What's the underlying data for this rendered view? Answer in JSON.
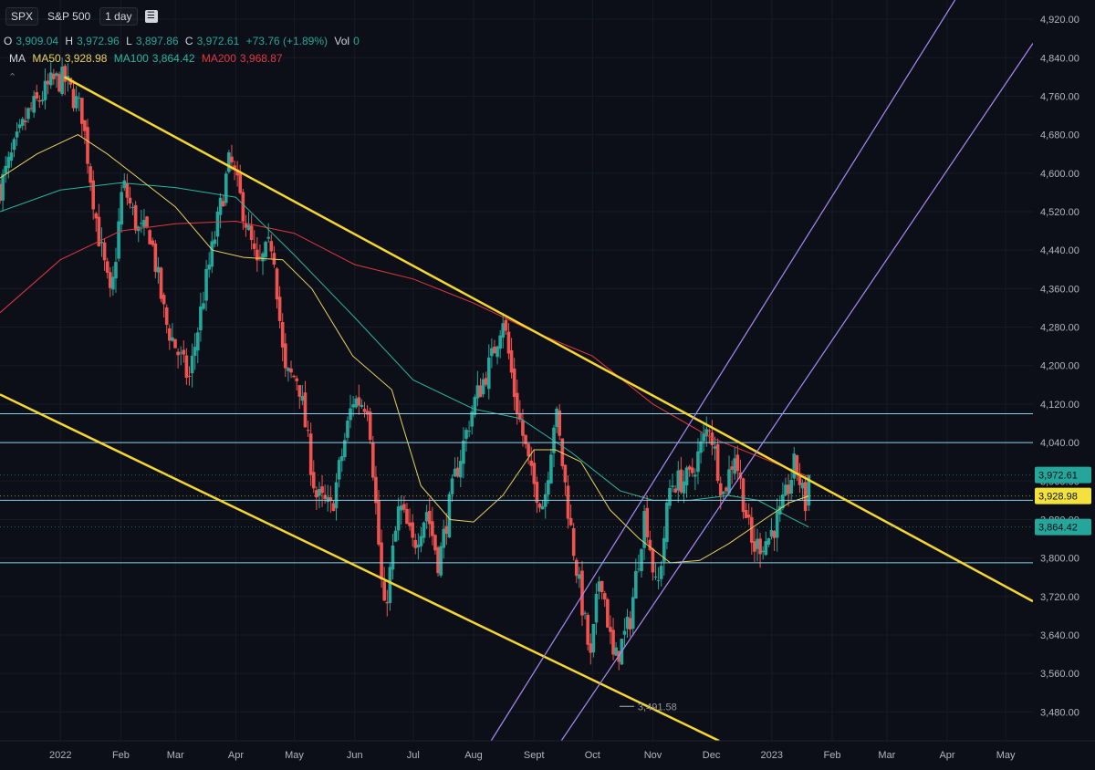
{
  "header": {
    "symbol": "SPX",
    "name": "S&P 500",
    "interval": "1 day",
    "format_icon": "menu-icon"
  },
  "ohlc": {
    "o_label": "O",
    "o": "3,909.04",
    "h_label": "H",
    "h": "3,972.96",
    "l_label": "L",
    "l": "3,897.86",
    "c_label": "C",
    "c": "3,972.61",
    "change": "+73.76 (+1.89%)",
    "vol_label": "Vol",
    "vol": "0"
  },
  "ma_legend": {
    "label": "MA",
    "ma50_label": "MA50",
    "ma50": "3,928.98",
    "ma100_label": "MA100",
    "ma100": "3,864.42",
    "ma200_label": "MA200",
    "ma200": "3,968.87"
  },
  "colors": {
    "up": "#26a69a",
    "down": "#ef5350",
    "ma50": "#e8d35c",
    "ma100": "#29b6a0",
    "ma200": "#e0383f",
    "channel": "#f5d730",
    "pitchfork": "#a78bf5",
    "hline": "#8ecfe8",
    "bg": "#0d0f18"
  },
  "chart_data": {
    "type": "candlestick",
    "title": "SPX S&P 500 1 day",
    "ylim": [
      3420,
      4960
    ],
    "y_ticks": [
      3480,
      3560,
      3640,
      3720,
      3800,
      3880,
      3960,
      4040,
      4120,
      4200,
      4280,
      4360,
      4440,
      4520,
      4600,
      4680,
      4760,
      4840,
      4920
    ],
    "y_tick_labels": [
      "3,480.00",
      "3,560.00",
      "3,640.00",
      "3,720.00",
      "3,800.00",
      "3,880.00",
      "3,960.00",
      "4,040.00",
      "4,120.00",
      "4,200.00",
      "4,280.00",
      "4,360.00",
      "4,440.00",
      "4,520.00",
      "4,600.00",
      "4,680.00",
      "4,760.00",
      "4,840.00",
      "4,920.00"
    ],
    "x_ticks": [
      {
        "label": "2022",
        "date": "2022-01-01"
      },
      {
        "label": "Feb",
        "date": "2022-02-01"
      },
      {
        "label": "Mar",
        "date": "2022-03-01"
      },
      {
        "label": "Apr",
        "date": "2022-04-01"
      },
      {
        "label": "May",
        "date": "2022-05-01"
      },
      {
        "label": "Jun",
        "date": "2022-06-01"
      },
      {
        "label": "Jul",
        "date": "2022-07-01"
      },
      {
        "label": "Aug",
        "date": "2022-08-01"
      },
      {
        "label": "Sept",
        "date": "2022-09-01"
      },
      {
        "label": "Oct",
        "date": "2022-10-01"
      },
      {
        "label": "Nov",
        "date": "2022-11-01"
      },
      {
        "label": "Dec",
        "date": "2022-12-01"
      },
      {
        "label": "2023",
        "date": "2023-01-01"
      },
      {
        "label": "Feb",
        "date": "2023-02-01"
      },
      {
        "label": "Mar",
        "date": "2023-03-01"
      },
      {
        "label": "Apr",
        "date": "2023-04-01"
      },
      {
        "label": "May",
        "date": "2023-05-01"
      }
    ],
    "x_range": [
      "2021-12-01",
      "2023-05-15"
    ],
    "close_path": [
      [
        "2021-12-01",
        4570
      ],
      [
        "2021-12-15",
        4720
      ],
      [
        "2021-12-28",
        4790
      ],
      [
        "2022-01-03",
        4795
      ],
      [
        "2022-01-12",
        4725
      ],
      [
        "2022-01-20",
        4485
      ],
      [
        "2022-01-27",
        4330
      ],
      [
        "2022-02-02",
        4580
      ],
      [
        "2022-02-10",
        4480
      ],
      [
        "2022-02-16",
        4475
      ],
      [
        "2022-02-24",
        4290
      ],
      [
        "2022-03-08",
        4170
      ],
      [
        "2022-03-16",
        4360
      ],
      [
        "2022-03-29",
        4630
      ],
      [
        "2022-04-05",
        4520
      ],
      [
        "2022-04-12",
        4400
      ],
      [
        "2022-04-20",
        4460
      ],
      [
        "2022-04-26",
        4180
      ],
      [
        "2022-05-03",
        4175
      ],
      [
        "2022-05-12",
        3930
      ],
      [
        "2022-05-20",
        3900
      ],
      [
        "2022-05-31",
        4130
      ],
      [
        "2022-06-08",
        4120
      ],
      [
        "2022-06-16",
        3680
      ],
      [
        "2022-06-24",
        3910
      ],
      [
        "2022-07-01",
        3825
      ],
      [
        "2022-07-08",
        3900
      ],
      [
        "2022-07-14",
        3790
      ],
      [
        "2022-07-22",
        3960
      ],
      [
        "2022-08-01",
        4120
      ],
      [
        "2022-08-10",
        4210
      ],
      [
        "2022-08-16",
        4305
      ],
      [
        "2022-08-22",
        4140
      ],
      [
        "2022-08-31",
        3960
      ],
      [
        "2022-09-06",
        3910
      ],
      [
        "2022-09-12",
        4110
      ],
      [
        "2022-09-20",
        3855
      ],
      [
        "2022-09-30",
        3585
      ],
      [
        "2022-10-05",
        3780
      ],
      [
        "2022-10-12",
        3580
      ],
      [
        "2022-10-20",
        3665
      ],
      [
        "2022-10-28",
        3900
      ],
      [
        "2022-11-03",
        3720
      ],
      [
        "2022-11-10",
        3955
      ],
      [
        "2022-11-20",
        3965
      ],
      [
        "2022-11-30",
        4080
      ],
      [
        "2022-12-07",
        3930
      ],
      [
        "2022-12-13",
        4020
      ],
      [
        "2022-12-22",
        3820
      ],
      [
        "2022-12-30",
        3840
      ],
      [
        "2023-01-06",
        3895
      ],
      [
        "2023-01-13",
        3999
      ],
      [
        "2023-01-19",
        3898
      ],
      [
        "2023-01-20",
        3972.61
      ]
    ],
    "candle_interval_days": 1.45,
    "last_candle": {
      "date": "2023-01-20",
      "open": 3909.04,
      "high": 3972.96,
      "low": 3897.86,
      "close": 3972.61
    },
    "ma50": [
      [
        "2021-12-01",
        4590
      ],
      [
        "2021-12-20",
        4640
      ],
      [
        "2022-01-10",
        4680
      ],
      [
        "2022-01-25",
        4640
      ],
      [
        "2022-02-10",
        4590
      ],
      [
        "2022-03-01",
        4530
      ],
      [
        "2022-03-20",
        4440
      ],
      [
        "2022-04-05",
        4425
      ],
      [
        "2022-04-25",
        4420
      ],
      [
        "2022-05-10",
        4360
      ],
      [
        "2022-05-31",
        4220
      ],
      [
        "2022-06-20",
        4150
      ],
      [
        "2022-07-05",
        3950
      ],
      [
        "2022-07-20",
        3880
      ],
      [
        "2022-08-01",
        3875
      ],
      [
        "2022-08-16",
        3930
      ],
      [
        "2022-09-01",
        4025
      ],
      [
        "2022-09-12",
        4025
      ],
      [
        "2022-09-25",
        4000
      ],
      [
        "2022-10-10",
        3900
      ],
      [
        "2022-10-25",
        3840
      ],
      [
        "2022-11-10",
        3790
      ],
      [
        "2022-11-25",
        3795
      ],
      [
        "2022-12-10",
        3830
      ],
      [
        "2022-12-28",
        3880
      ],
      [
        "2023-01-10",
        3915
      ],
      [
        "2023-01-20",
        3928.98
      ]
    ],
    "ma100": [
      [
        "2021-12-01",
        4520
      ],
      [
        "2022-01-01",
        4565
      ],
      [
        "2022-02-01",
        4580
      ],
      [
        "2022-03-01",
        4570
      ],
      [
        "2022-04-01",
        4550
      ],
      [
        "2022-05-01",
        4430
      ],
      [
        "2022-06-01",
        4300
      ],
      [
        "2022-07-01",
        4170
      ],
      [
        "2022-08-01",
        4110
      ],
      [
        "2022-08-25",
        4090
      ],
      [
        "2022-09-20",
        4020
      ],
      [
        "2022-10-15",
        3940
      ],
      [
        "2022-11-01",
        3920
      ],
      [
        "2022-11-20",
        3920
      ],
      [
        "2022-12-10",
        3930
      ],
      [
        "2022-12-25",
        3920
      ],
      [
        "2023-01-10",
        3885
      ],
      [
        "2023-01-20",
        3864.42
      ]
    ],
    "ma200": [
      [
        "2021-12-01",
        4310
      ],
      [
        "2022-01-01",
        4420
      ],
      [
        "2022-02-01",
        4480
      ],
      [
        "2022-03-01",
        4495
      ],
      [
        "2022-04-01",
        4500
      ],
      [
        "2022-05-01",
        4475
      ],
      [
        "2022-06-01",
        4410
      ],
      [
        "2022-07-01",
        4380
      ],
      [
        "2022-08-01",
        4330
      ],
      [
        "2022-09-01",
        4270
      ],
      [
        "2022-10-01",
        4220
      ],
      [
        "2022-11-01",
        4120
      ],
      [
        "2022-12-01",
        4050
      ],
      [
        "2023-01-01",
        4000
      ],
      [
        "2023-01-20",
        3968.87
      ]
    ],
    "channel_upper": [
      [
        "2022-01-03",
        4800
      ],
      [
        "2023-05-15",
        3710
      ]
    ],
    "channel_lower": [
      [
        "2021-12-01",
        4140
      ],
      [
        "2022-12-05",
        3420
      ]
    ],
    "pitchfork_1": [
      [
        "2022-08-10",
        3420
      ],
      [
        "2023-04-05",
        4960
      ]
    ],
    "pitchfork_2": [
      [
        "2022-09-15",
        3420
      ],
      [
        "2023-05-15",
        4870
      ]
    ],
    "hlines": [
      4100,
      4040,
      3920,
      3790
    ],
    "price_badges": [
      {
        "value": 3972.61,
        "label": "3,972.61",
        "color": "#26a69a"
      },
      {
        "value": 3928.98,
        "label": "3,928.98",
        "color": "#f3e23e"
      },
      {
        "value": 3864.42,
        "label": "3,864.42",
        "color": "#26a69a"
      }
    ],
    "low_marker": {
      "date": "2022-10-13",
      "value": 3491.58,
      "label": "3,491.58"
    }
  }
}
